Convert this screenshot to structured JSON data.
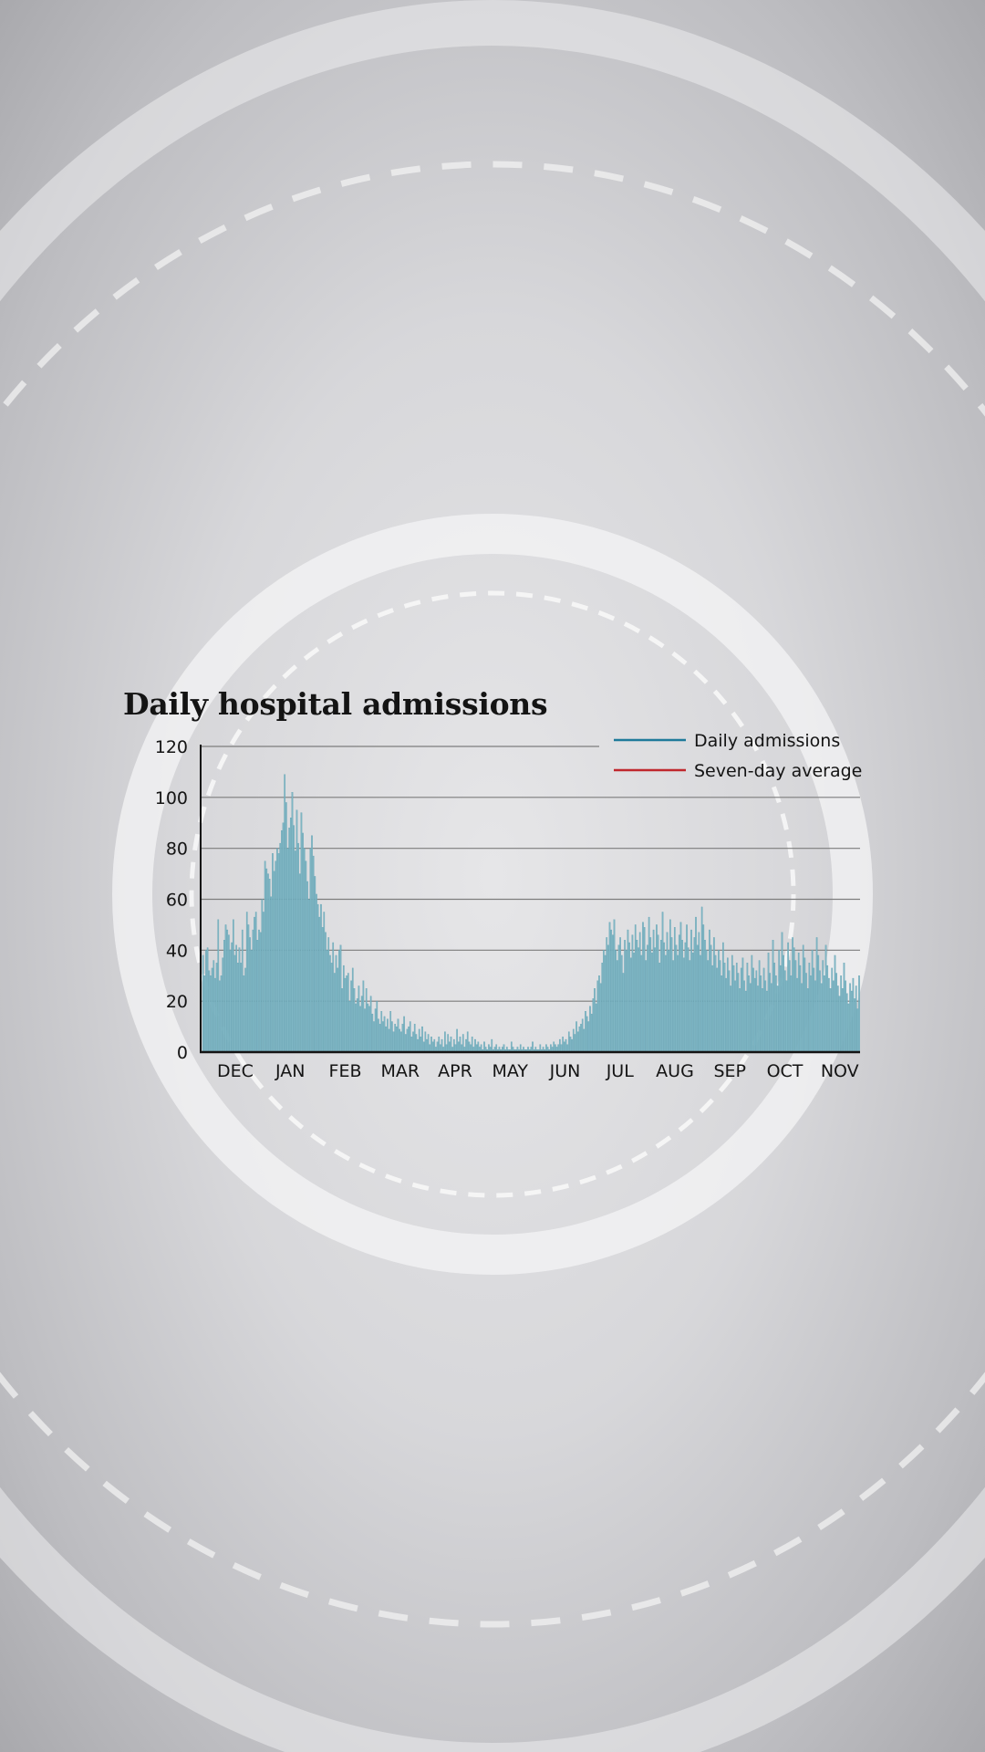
{
  "colors": {
    "bar": "#7fb6c4",
    "bar_edge": "#5e9fb0",
    "daily_line": "#1f7a9a",
    "average_line": "#c0272d",
    "axis": "#141414",
    "grid": "#7d7d7d"
  },
  "chart_data": {
    "type": "bar",
    "title": "Daily hospital admissions",
    "xlabel": "",
    "ylabel": "",
    "ylim": [
      0,
      120
    ],
    "y_ticks": [
      0,
      20,
      40,
      60,
      80,
      100,
      120
    ],
    "x_ticks": [
      "DEC",
      "JAN",
      "FEB",
      "MAR",
      "APR",
      "MAY",
      "JUN",
      "JUL",
      "AUG",
      "SEP",
      "OCT",
      "NOV"
    ],
    "grid": true,
    "legend_position": "top-right",
    "series": [
      {
        "name": "Daily admissions",
        "values": [
          38,
          30,
          40,
          41,
          32,
          30,
          33,
          36,
          29,
          35,
          52,
          28,
          30,
          37,
          44,
          50,
          48,
          46,
          40,
          43,
          52,
          38,
          42,
          35,
          41,
          35,
          48,
          30,
          33,
          55,
          50,
          45,
          40,
          48,
          53,
          55,
          44,
          48,
          47,
          60,
          55,
          75,
          72,
          70,
          68,
          61,
          78,
          71,
          75,
          80,
          78,
          82,
          87,
          90,
          109,
          98,
          80,
          88,
          92,
          102,
          89,
          79,
          95,
          82,
          70,
          94,
          86,
          80,
          75,
          67,
          60,
          80,
          85,
          77,
          69,
          62,
          58,
          53,
          58,
          49,
          55,
          47,
          40,
          45,
          38,
          35,
          43,
          31,
          38,
          33,
          40,
          42,
          25,
          34,
          29,
          30,
          31,
          20,
          28,
          33,
          25,
          19,
          21,
          26,
          18,
          22,
          28,
          17,
          25,
          19,
          18,
          22,
          15,
          12,
          17,
          20,
          13,
          11,
          16,
          12,
          14,
          10,
          13,
          9,
          16,
          12,
          8,
          11,
          10,
          13,
          9,
          8,
          11,
          14,
          7,
          9,
          10,
          12,
          6,
          8,
          11,
          7,
          5,
          9,
          6,
          10,
          4,
          8,
          5,
          7,
          3,
          6,
          4,
          5,
          2,
          4,
          6,
          3,
          5,
          2,
          8,
          3,
          7,
          4,
          6,
          2,
          5,
          3,
          9,
          4,
          6,
          3,
          7,
          2,
          5,
          8,
          4,
          3,
          6,
          2,
          5,
          3,
          4,
          2,
          3,
          1,
          4,
          2,
          1,
          3,
          2,
          5,
          1,
          2,
          3,
          1,
          2,
          1,
          2,
          3,
          1,
          2,
          1,
          1,
          4,
          2,
          1,
          1,
          2,
          1,
          3,
          1,
          2,
          1,
          1,
          2,
          1,
          2,
          4,
          1,
          2,
          1,
          1,
          3,
          1,
          2,
          1,
          3,
          2,
          1,
          3,
          2,
          4,
          3,
          2,
          3,
          5,
          3,
          6,
          4,
          5,
          3,
          8,
          6,
          5,
          9,
          7,
          12,
          8,
          10,
          11,
          13,
          9,
          16,
          14,
          12,
          18,
          15,
          21,
          25,
          19,
          28,
          30,
          27,
          35,
          40,
          38,
          45,
          42,
          51,
          48,
          46,
          52,
          40,
          36,
          42,
          45,
          38,
          31,
          44,
          40,
          48,
          43,
          37,
          46,
          39,
          50,
          44,
          41,
          47,
          38,
          51,
          49,
          36,
          42,
          53,
          45,
          39,
          48,
          41,
          50,
          46,
          35,
          44,
          55,
          43,
          38,
          47,
          40,
          52,
          45,
          36,
          49,
          42,
          38,
          46,
          51,
          44,
          37,
          43,
          50,
          41,
          36,
          48,
          39,
          45,
          53,
          42,
          47,
          38,
          57,
          50,
          44,
          40,
          36,
          48,
          42,
          34,
          45,
          38,
          33,
          40,
          36,
          30,
          43,
          35,
          29,
          37,
          32,
          26,
          38,
          34,
          28,
          35,
          31,
          25,
          33,
          37,
          28,
          24,
          35,
          30,
          27,
          38,
          33,
          29,
          32,
          26,
          36,
          30,
          25,
          33,
          28,
          24,
          39,
          31,
          27,
          44,
          35,
          30,
          26,
          40,
          34,
          47,
          38,
          32,
          28,
          43,
          36,
          30,
          45,
          41,
          36,
          29,
          39,
          34,
          27,
          42,
          37,
          31,
          25,
          35,
          30,
          40,
          33,
          28,
          45,
          38,
          32,
          27,
          36,
          30,
          42,
          34,
          29,
          25,
          33,
          28,
          38,
          31,
          26,
          22,
          30,
          25,
          35,
          28,
          23,
          19,
          27,
          24,
          29,
          21,
          26,
          17,
          30
        ]
      },
      {
        "name": "Seven-day average",
        "values": []
      }
    ]
  }
}
